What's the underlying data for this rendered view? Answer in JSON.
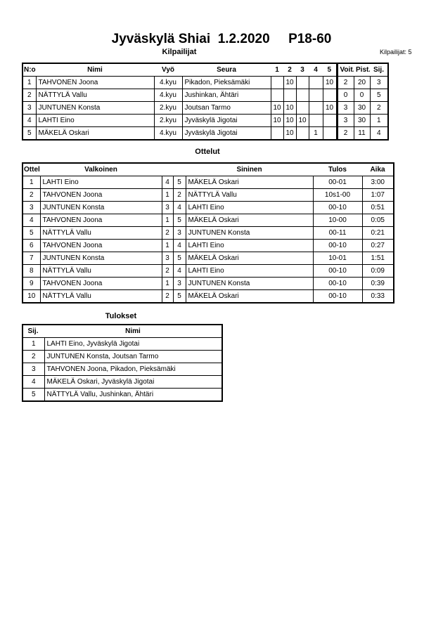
{
  "title": "Jyväskylä Shiai  1.2.2020     P18-60",
  "competitors": {
    "heading": "Kilpailijat",
    "count": "Kilpailijat: 5",
    "columns": [
      "N:o",
      "Nimi",
      "Vyö",
      "Seura",
      "1",
      "2",
      "3",
      "4",
      "5",
      "Voit.",
      "Pist.",
      "Sij."
    ],
    "rows": [
      [
        "1",
        "TAHVONEN Joona",
        "4.kyu",
        "Pikadon, Pieksämäki",
        "",
        "10",
        "",
        "",
        "10",
        "2",
        "20",
        "3"
      ],
      [
        "2",
        "NÄTTYLÄ Vallu",
        "4.kyu",
        "Jushinkan, Ähtäri",
        "",
        "",
        "",
        "",
        "",
        "0",
        "0",
        "5"
      ],
      [
        "3",
        "JUNTUNEN Konsta",
        "2.kyu",
        "Joutsan Tarmo",
        "10",
        "10",
        "",
        "",
        "10",
        "3",
        "30",
        "2"
      ],
      [
        "4",
        "LAHTI Eino",
        "2.kyu",
        "Jyväskylä Jigotai",
        "10",
        "10",
        "10",
        "",
        "",
        "3",
        "30",
        "1"
      ],
      [
        "5",
        "MÄKELÄ Oskari",
        "4.kyu",
        "Jyväskylä Jigotai",
        "",
        "10",
        "",
        "1",
        "",
        "2",
        "11",
        "4"
      ]
    ]
  },
  "matches": {
    "heading": "Ottelut",
    "columns": [
      "Ottelu",
      "Valkoinen",
      "",
      "",
      "Sininen",
      "Tulos",
      "Aika"
    ],
    "rows": [
      [
        "1",
        "LAHTI Eino",
        "4",
        "5",
        "MÄKELÄ Oskari",
        "00-01",
        "3:00"
      ],
      [
        "2",
        "TAHVONEN Joona",
        "1",
        "2",
        "NÄTTYLÄ Vallu",
        "10s1-00",
        "1:07"
      ],
      [
        "3",
        "JUNTUNEN Konsta",
        "3",
        "4",
        "LAHTI Eino",
        "00-10",
        "0:51"
      ],
      [
        "4",
        "TAHVONEN Joona",
        "1",
        "5",
        "MÄKELÄ Oskari",
        "10-00",
        "0:05"
      ],
      [
        "5",
        "NÄTTYLÄ Vallu",
        "2",
        "3",
        "JUNTUNEN Konsta",
        "00-11",
        "0:21"
      ],
      [
        "6",
        "TAHVONEN Joona",
        "1",
        "4",
        "LAHTI Eino",
        "00-10",
        "0:27"
      ],
      [
        "7",
        "JUNTUNEN Konsta",
        "3",
        "5",
        "MÄKELÄ Oskari",
        "10-01",
        "1:51"
      ],
      [
        "8",
        "NÄTTYLÄ Vallu",
        "2",
        "4",
        "LAHTI Eino",
        "00-10",
        "0:09"
      ],
      [
        "9",
        "TAHVONEN Joona",
        "1",
        "3",
        "JUNTUNEN Konsta",
        "00-10",
        "0:39"
      ],
      [
        "10",
        "NÄTTYLÄ Vallu",
        "2",
        "5",
        "MÄKELÄ Oskari",
        "00-10",
        "0:33"
      ]
    ]
  },
  "results": {
    "heading": "Tulokset",
    "columns": [
      "Sij.",
      "Nimi"
    ],
    "rows": [
      [
        "1",
        "LAHTI Eino, Jyväskylä Jigotai"
      ],
      [
        "2",
        "JUNTUNEN Konsta, Joutsan Tarmo"
      ],
      [
        "3",
        "TAHVONEN Joona, Pikadon, Pieksämäki"
      ],
      [
        "4",
        "MÄKELÄ Oskari, Jyväskylä Jigotai"
      ],
      [
        "5",
        "NÄTTYLÄ Vallu, Jushinkan, Ähtäri"
      ]
    ]
  }
}
